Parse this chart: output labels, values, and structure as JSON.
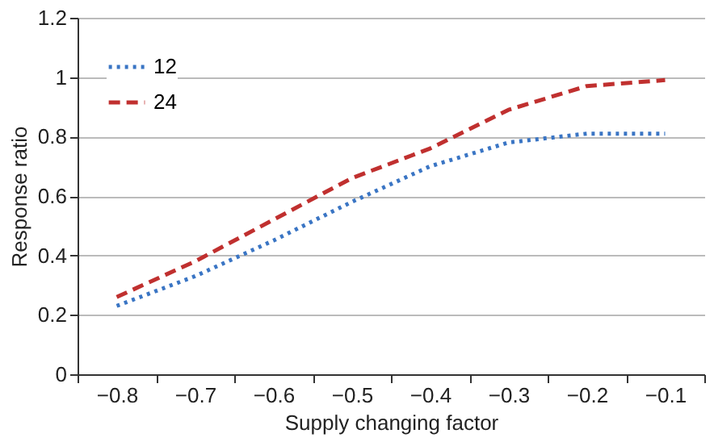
{
  "chart_data": {
    "type": "line",
    "xlabel": "Supply changing factor",
    "ylabel": "Response ratio",
    "categories": [
      "−0.8",
      "−0.7",
      "−0.6",
      "−0.5",
      "−0.4",
      "−0.3",
      "−0.2",
      "−0.1"
    ],
    "series": [
      {
        "name": "12",
        "color": "#3a75c4",
        "line_style": "dotted",
        "values": [
          0.23,
          0.33,
          0.45,
          0.58,
          0.7,
          0.78,
          0.81,
          0.81
        ]
      },
      {
        "name": "24",
        "color": "#c0302f",
        "line_style": "dashed",
        "values": [
          0.26,
          0.38,
          0.52,
          0.66,
          0.76,
          0.89,
          0.97,
          0.99
        ]
      }
    ],
    "ylim": [
      0,
      1.2
    ],
    "yticks": [
      0,
      0.2,
      0.4,
      0.6,
      0.8,
      1,
      1.2
    ],
    "grid": "y",
    "legend": "top left",
    "marker": "none"
  }
}
